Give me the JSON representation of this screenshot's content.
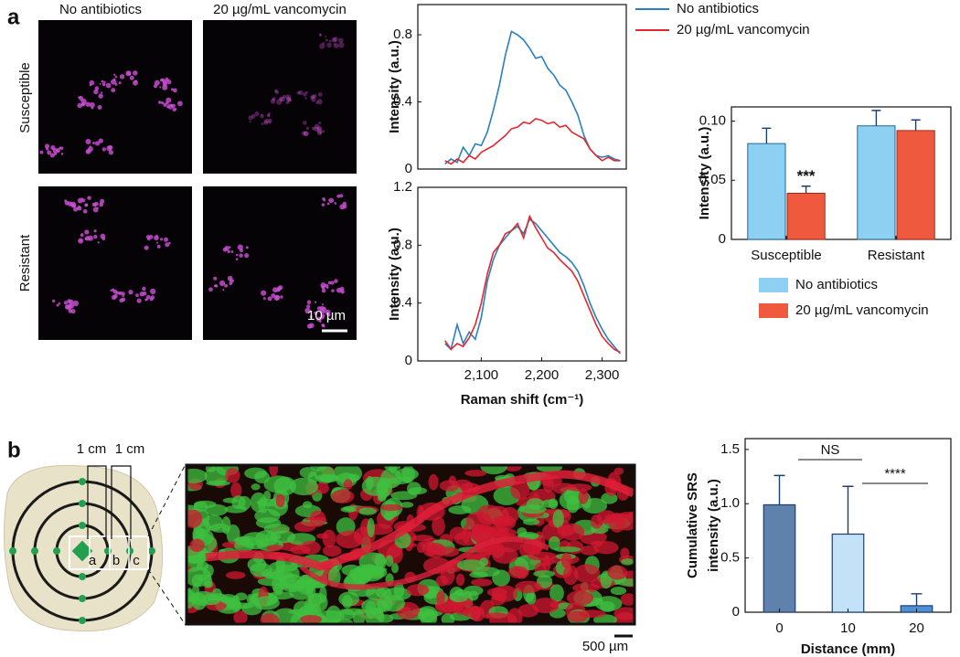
{
  "panel_labels": [
    "a",
    "b"
  ],
  "microscopy": {
    "columns": [
      "No antibiotics",
      "20 µg/mL vancomycin"
    ],
    "rows": [
      "Susceptible",
      "Resistant"
    ],
    "scale_bar": "10 µm"
  },
  "tissue": {
    "spacing_labels": [
      "1 cm",
      "1 cm"
    ],
    "zone_labels": [
      "a",
      "b",
      "c"
    ],
    "scale_bar": "500 µm"
  },
  "chart_data": [
    {
      "type": "line",
      "y_label": "Intensity (a.u.)",
      "x": [
        2040,
        2050,
        2060,
        2070,
        2080,
        2090,
        2100,
        2110,
        2120,
        2130,
        2140,
        2150,
        2160,
        2170,
        2180,
        2190,
        2200,
        2210,
        2220,
        2230,
        2240,
        2250,
        2260,
        2270,
        2280,
        2290,
        2300,
        2310,
        2320,
        2330
      ],
      "xlim": [
        1995,
        2340
      ],
      "ylim": [
        0,
        0.98
      ],
      "yticks": [
        0,
        0.4,
        0.8
      ],
      "legend": "top-right",
      "series": [
        {
          "name": "No antibiotics",
          "color": "#2a7fc1",
          "values": [
            0.03,
            0.06,
            0.04,
            0.13,
            0.08,
            0.15,
            0.14,
            0.22,
            0.35,
            0.5,
            0.68,
            0.82,
            0.8,
            0.77,
            0.72,
            0.66,
            0.67,
            0.6,
            0.56,
            0.5,
            0.47,
            0.4,
            0.32,
            0.2,
            0.12,
            0.08,
            0.07,
            0.08,
            0.06,
            0.05
          ]
        },
        {
          "name": "20 µg/mL vancomycin",
          "color": "#e0282e",
          "values": [
            0.05,
            0.03,
            0.06,
            0.04,
            0.08,
            0.06,
            0.1,
            0.12,
            0.14,
            0.17,
            0.2,
            0.24,
            0.25,
            0.28,
            0.27,
            0.3,
            0.29,
            0.27,
            0.28,
            0.25,
            0.26,
            0.22,
            0.2,
            0.18,
            0.12,
            0.08,
            0.05,
            0.07,
            0.05,
            0.05
          ]
        }
      ]
    },
    {
      "type": "line",
      "y_label": "Intensity (a.u.)",
      "x_label": "Raman shift (cm⁻¹)",
      "x": [
        2040,
        2050,
        2060,
        2070,
        2080,
        2090,
        2100,
        2110,
        2120,
        2130,
        2140,
        2150,
        2160,
        2170,
        2180,
        2190,
        2200,
        2210,
        2220,
        2230,
        2240,
        2250,
        2260,
        2270,
        2280,
        2290,
        2300,
        2310,
        2320,
        2330
      ],
      "xlim": [
        1995,
        2340
      ],
      "ylim": [
        0,
        1.2
      ],
      "yticks": [
        0,
        0.4,
        0.8,
        1.2
      ],
      "xticks": [
        {
          "value": 2100,
          "label": "2,100"
        },
        {
          "value": 2200,
          "label": "2,200"
        },
        {
          "value": 2300,
          "label": "2,300"
        }
      ],
      "series": [
        {
          "color": "#2a7fc1",
          "values": [
            0.12,
            0.08,
            0.25,
            0.12,
            0.2,
            0.15,
            0.3,
            0.55,
            0.7,
            0.8,
            0.85,
            0.9,
            0.93,
            0.88,
            0.98,
            0.95,
            0.9,
            0.85,
            0.8,
            0.75,
            0.72,
            0.68,
            0.62,
            0.52,
            0.4,
            0.3,
            0.22,
            0.15,
            0.1,
            0.05
          ]
        },
        {
          "color": "#e0282e",
          "values": [
            0.14,
            0.08,
            0.12,
            0.1,
            0.16,
            0.25,
            0.4,
            0.6,
            0.75,
            0.8,
            0.88,
            0.9,
            0.95,
            0.85,
            1.0,
            0.92,
            0.85,
            0.78,
            0.75,
            0.7,
            0.66,
            0.62,
            0.55,
            0.45,
            0.35,
            0.25,
            0.17,
            0.12,
            0.08,
            0.06
          ]
        }
      ]
    },
    {
      "type": "bar",
      "y_label": "Intensity (a.u.)",
      "categories": [
        "Susceptible",
        "Resistant"
      ],
      "ylim": [
        0,
        0.112
      ],
      "yticks": [
        0,
        0.05,
        {
          "value": 0.1,
          "label": "0.10"
        }
      ],
      "legend": "bottom",
      "annotations": [
        "***"
      ],
      "series": [
        {
          "name": "No antibiotics",
          "color": "#8dd0f2",
          "values": [
            0.081,
            0.096
          ],
          "errors": [
            0.013,
            0.013
          ]
        },
        {
          "name": "20 µg/mL vancomycin",
          "color": "#ef5a3f",
          "values": [
            0.039,
            0.092
          ],
          "errors": [
            0.006,
            0.009
          ]
        }
      ]
    },
    {
      "type": "bar",
      "y_label": [
        "Cumulative SRS",
        "intensity (a.u.)"
      ],
      "x_label": "Distance (mm)",
      "categories": [
        "0",
        "10",
        "20"
      ],
      "values": [
        0.99,
        0.72,
        0.06
      ],
      "errors": [
        0.27,
        0.44,
        0.11
      ],
      "colors": [
        "#5f82ad",
        "#c3e2f8",
        "#4f92d3"
      ],
      "annotations": [
        "NS",
        "****"
      ],
      "ylim": [
        0,
        1.6
      ],
      "yticks": [
        0,
        0.5,
        {
          "value": 1,
          "label": "1.0"
        },
        1.5
      ]
    }
  ]
}
